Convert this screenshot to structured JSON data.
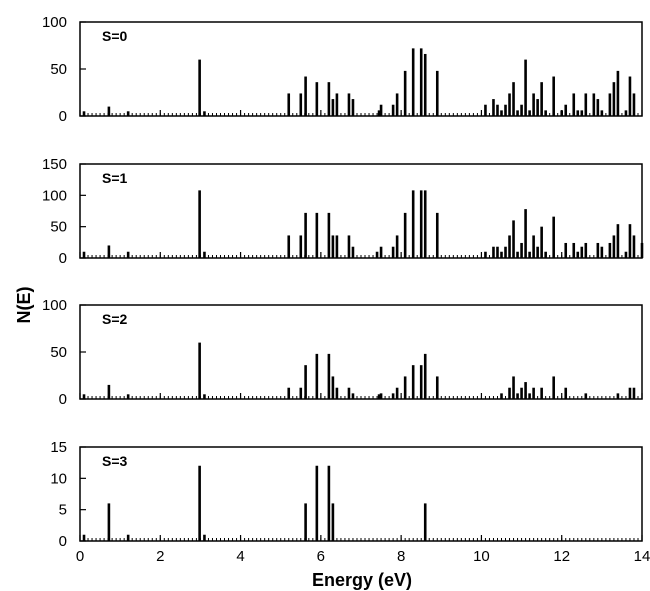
{
  "figure": {
    "ylabel": "N(E)",
    "xlabel": "Energy (eV)"
  },
  "chart_data": [
    {
      "type": "bar",
      "label": "S=0",
      "xlim": [
        0,
        14
      ],
      "ylim": [
        0,
        100
      ],
      "yticks": [
        0,
        50,
        100
      ],
      "xticks": [
        0,
        2,
        4,
        6,
        8,
        10,
        12,
        14
      ],
      "show_x_tick_labels": false,
      "x": [
        0.1,
        0.72,
        1.2,
        2.98,
        3.1,
        5.2,
        5.5,
        5.62,
        5.9,
        6.2,
        6.3,
        6.4,
        6.7,
        6.8,
        7.45,
        7.5,
        7.8,
        7.9,
        8.1,
        8.3,
        8.5,
        8.6,
        8.9,
        10.1,
        10.3,
        10.4,
        10.5,
        10.6,
        10.7,
        10.8,
        10.9,
        11.0,
        11.1,
        11.2,
        11.3,
        11.4,
        11.5,
        11.6,
        11.8,
        12.0,
        12.1,
        12.3,
        12.4,
        12.5,
        12.6,
        12.8,
        12.9,
        13.0,
        13.2,
        13.3,
        13.4,
        13.6,
        13.7,
        13.8
      ],
      "values": [
        5,
        10,
        5,
        60,
        5,
        24,
        24,
        42,
        36,
        36,
        18,
        24,
        24,
        18,
        6,
        12,
        12,
        24,
        48,
        72,
        72,
        66,
        48,
        12,
        18,
        12,
        6,
        12,
        24,
        36,
        6,
        12,
        60,
        6,
        24,
        18,
        36,
        6,
        42,
        6,
        12,
        24,
        6,
        6,
        24,
        24,
        18,
        6,
        24,
        36,
        48,
        6,
        42,
        24
      ]
    },
    {
      "type": "bar",
      "label": "S=1",
      "xlim": [
        0,
        14
      ],
      "ylim": [
        0,
        150
      ],
      "yticks": [
        0,
        50,
        100,
        150
      ],
      "xticks": [
        0,
        2,
        4,
        6,
        8,
        10,
        12,
        14
      ],
      "show_x_tick_labels": false,
      "x": [
        0.1,
        0.72,
        1.2,
        2.98,
        3.1,
        5.2,
        5.5,
        5.62,
        5.9,
        6.2,
        6.3,
        6.4,
        6.7,
        6.8,
        7.4,
        7.5,
        7.8,
        7.9,
        8.1,
        8.3,
        8.5,
        8.6,
        8.9,
        10.1,
        10.3,
        10.4,
        10.5,
        10.6,
        10.7,
        10.8,
        10.9,
        11.0,
        11.1,
        11.2,
        11.3,
        11.4,
        11.5,
        11.6,
        11.8,
        12.1,
        12.3,
        12.4,
        12.5,
        12.6,
        12.9,
        13.0,
        13.2,
        13.3,
        13.4,
        13.6,
        13.7,
        13.8,
        14.0
      ],
      "values": [
        10,
        20,
        10,
        108,
        10,
        36,
        36,
        72,
        72,
        72,
        36,
        36,
        36,
        18,
        10,
        18,
        18,
        36,
        72,
        108,
        108,
        108,
        72,
        10,
        18,
        18,
        10,
        18,
        36,
        60,
        10,
        24,
        78,
        10,
        36,
        18,
        50,
        10,
        66,
        24,
        24,
        10,
        18,
        24,
        24,
        18,
        24,
        36,
        54,
        10,
        54,
        36,
        24
      ]
    },
    {
      "type": "bar",
      "label": "S=2",
      "xlim": [
        0,
        14
      ],
      "ylim": [
        0,
        100
      ],
      "yticks": [
        0,
        50,
        100
      ],
      "xticks": [
        0,
        2,
        4,
        6,
        8,
        10,
        12,
        14
      ],
      "show_x_tick_labels": false,
      "x": [
        0.1,
        0.72,
        1.2,
        2.98,
        3.1,
        5.2,
        5.5,
        5.62,
        5.9,
        6.2,
        6.3,
        6.4,
        6.7,
        6.8,
        7.45,
        7.5,
        7.8,
        7.9,
        8.1,
        8.3,
        8.5,
        8.6,
        8.9,
        10.5,
        10.7,
        10.8,
        10.9,
        11.0,
        11.1,
        11.2,
        11.3,
        11.5,
        11.8,
        12.1,
        12.6,
        13.4,
        13.7,
        13.8
      ],
      "values": [
        5,
        15,
        5,
        60,
        5,
        12,
        12,
        36,
        48,
        48,
        24,
        12,
        12,
        6,
        5,
        6,
        6,
        12,
        24,
        36,
        36,
        48,
        24,
        6,
        12,
        24,
        6,
        12,
        18,
        6,
        12,
        12,
        24,
        12,
        6,
        6,
        12,
        12
      ]
    },
    {
      "type": "bar",
      "label": "S=3",
      "xlim": [
        0,
        14
      ],
      "ylim": [
        0,
        15
      ],
      "yticks": [
        0,
        5,
        10,
        15
      ],
      "xticks": [
        0,
        2,
        4,
        6,
        8,
        10,
        12,
        14
      ],
      "xticklabels": [
        "0",
        "2",
        "4",
        "6",
        "8",
        "10",
        "12",
        "14"
      ],
      "show_x_tick_labels": true,
      "x": [
        0.1,
        0.72,
        1.2,
        2.98,
        3.1,
        5.62,
        5.9,
        6.2,
        6.3,
        8.6
      ],
      "values": [
        1,
        6,
        1,
        12,
        1,
        6,
        12,
        12,
        6,
        6
      ]
    }
  ]
}
